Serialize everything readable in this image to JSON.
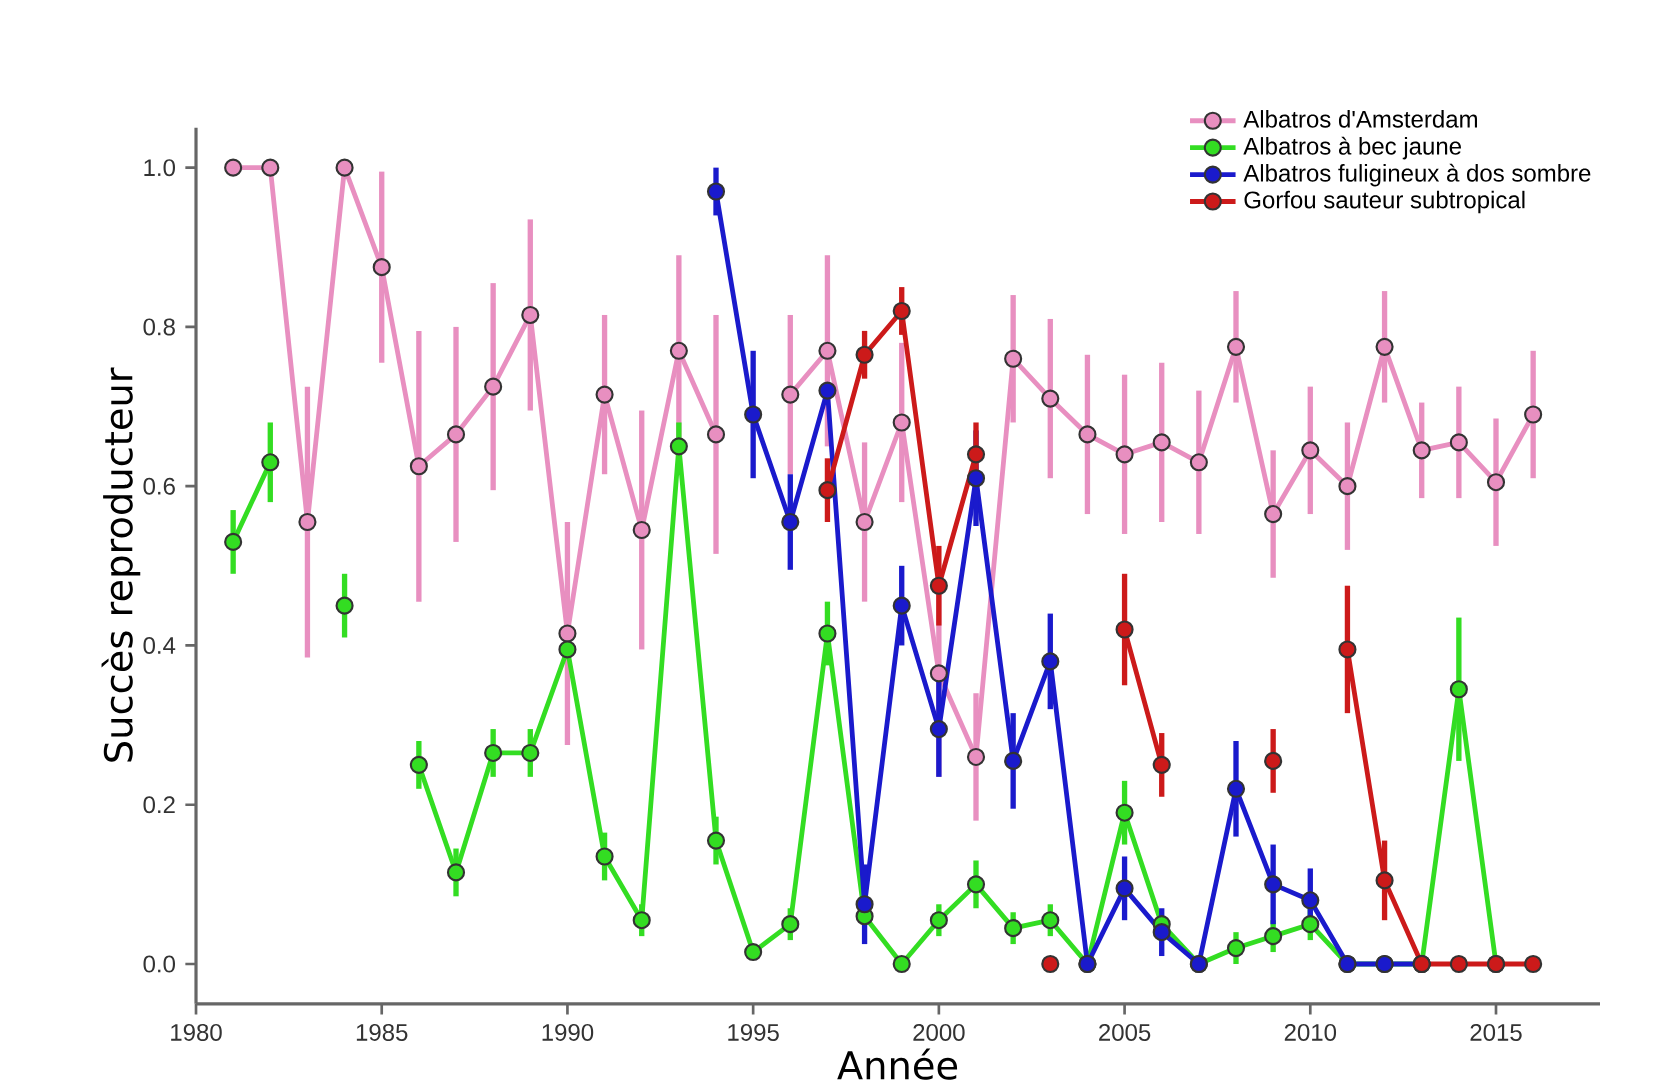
{
  "chart_data": {
    "type": "line",
    "xlabel": "Année",
    "ylabel": "Succès reproducteur",
    "x": [
      1981,
      1982,
      1983,
      1984,
      1985,
      1986,
      1987,
      1988,
      1989,
      1990,
      1991,
      1992,
      1993,
      1994,
      1995,
      1996,
      1997,
      1998,
      1999,
      2000,
      2001,
      2002,
      2003,
      2004,
      2005,
      2006,
      2007,
      2008,
      2009,
      2010,
      2011,
      2012,
      2013,
      2014,
      2015,
      2016
    ],
    "series": [
      {
        "name": "Albatros d'Amsterdam",
        "color": "#e88fc0",
        "values": [
          1.0,
          1.0,
          0.555,
          1.0,
          0.875,
          0.625,
          0.665,
          0.725,
          0.815,
          0.415,
          0.715,
          0.545,
          0.77,
          0.665,
          null,
          0.715,
          0.77,
          0.555,
          0.68,
          0.365,
          0.26,
          0.76,
          0.71,
          0.665,
          0.64,
          0.655,
          0.63,
          0.775,
          0.565,
          0.645,
          0.6,
          0.775,
          0.645,
          0.655,
          0.605,
          0.69
        ],
        "errors": [
          null,
          null,
          0.17,
          null,
          0.12,
          0.17,
          0.135,
          0.13,
          0.12,
          0.14,
          0.1,
          0.15,
          0.12,
          0.15,
          null,
          0.1,
          0.12,
          0.1,
          0.1,
          0.13,
          0.08,
          0.08,
          0.1,
          0.1,
          0.1,
          0.1,
          0.09,
          0.07,
          0.08,
          0.08,
          0.08,
          0.07,
          0.06,
          0.07,
          0.08,
          0.08
        ]
      },
      {
        "name": "Albatros à bec jaune",
        "color": "#33dd22",
        "values": [
          0.53,
          0.63,
          null,
          0.45,
          null,
          0.25,
          0.115,
          0.265,
          0.265,
          0.395,
          0.135,
          0.055,
          0.65,
          0.155,
          0.015,
          0.05,
          0.415,
          0.06,
          0.0,
          0.055,
          0.1,
          0.045,
          0.055,
          0.0,
          0.19,
          0.05,
          0.0,
          0.02,
          0.035,
          0.05,
          0.0,
          0.0,
          0.0,
          0.345,
          0.0,
          null
        ],
        "errors": [
          0.04,
          0.05,
          null,
          0.04,
          null,
          0.03,
          0.03,
          0.03,
          0.03,
          null,
          0.03,
          0.02,
          0.03,
          0.03,
          0.01,
          0.02,
          0.04,
          null,
          null,
          0.02,
          0.03,
          0.02,
          0.02,
          null,
          0.04,
          null,
          null,
          0.02,
          0.02,
          0.02,
          null,
          null,
          null,
          0.09,
          null,
          null
        ]
      },
      {
        "name": "Albatros fuligineux à dos sombre",
        "color": "#1a1acc",
        "values": [
          null,
          null,
          null,
          null,
          null,
          null,
          null,
          null,
          null,
          null,
          null,
          null,
          null,
          0.97,
          0.69,
          0.555,
          0.72,
          0.075,
          0.45,
          0.295,
          0.61,
          0.255,
          0.38,
          0.0,
          0.095,
          0.04,
          0.0,
          0.22,
          0.1,
          0.08,
          0.0,
          0.0,
          0.0,
          null,
          null,
          null
        ],
        "errors": [
          null,
          null,
          null,
          null,
          null,
          null,
          null,
          null,
          null,
          null,
          null,
          null,
          null,
          0.03,
          0.08,
          0.06,
          null,
          0.05,
          0.05,
          0.06,
          0.06,
          0.06,
          0.06,
          null,
          0.04,
          0.03,
          null,
          0.06,
          0.05,
          0.04,
          null,
          null,
          null,
          null,
          null,
          null
        ]
      },
      {
        "name": "Gorfou sauteur subtropical",
        "color": "#cc1a1a",
        "values": [
          null,
          null,
          null,
          null,
          null,
          null,
          null,
          null,
          null,
          null,
          null,
          null,
          null,
          null,
          null,
          null,
          0.595,
          0.765,
          0.82,
          0.475,
          0.64,
          null,
          0.0,
          null,
          0.42,
          0.25,
          null,
          null,
          0.255,
          null,
          0.395,
          0.105,
          0.0,
          0.0,
          0.0,
          0.0
        ],
        "errors": [
          null,
          null,
          null,
          null,
          null,
          null,
          null,
          null,
          null,
          null,
          null,
          null,
          null,
          null,
          null,
          null,
          0.04,
          0.03,
          0.03,
          0.05,
          0.04,
          null,
          null,
          null,
          0.07,
          0.04,
          null,
          null,
          0.04,
          null,
          0.08,
          0.05,
          null,
          null,
          null,
          null
        ]
      }
    ],
    "xlim": [
      1980,
      2017.8
    ],
    "ylim": [
      -0.05,
      1.05
    ],
    "xticks": [
      1980,
      1985,
      1990,
      1995,
      2000,
      2005,
      2010,
      2015
    ],
    "yticks": [
      {
        "value": 0,
        "label": "0.0"
      },
      {
        "value": 0.2,
        "label": "0.2"
      },
      {
        "value": 0.4,
        "label": "0.4"
      },
      {
        "value": 0.6,
        "label": "0.6"
      },
      {
        "value": 0.8,
        "label": "0.8"
      },
      {
        "value": 1.0,
        "label": "1.0"
      }
    ],
    "legend": "top right",
    "marker": "circle",
    "line_style": "solid",
    "grid": false
  }
}
